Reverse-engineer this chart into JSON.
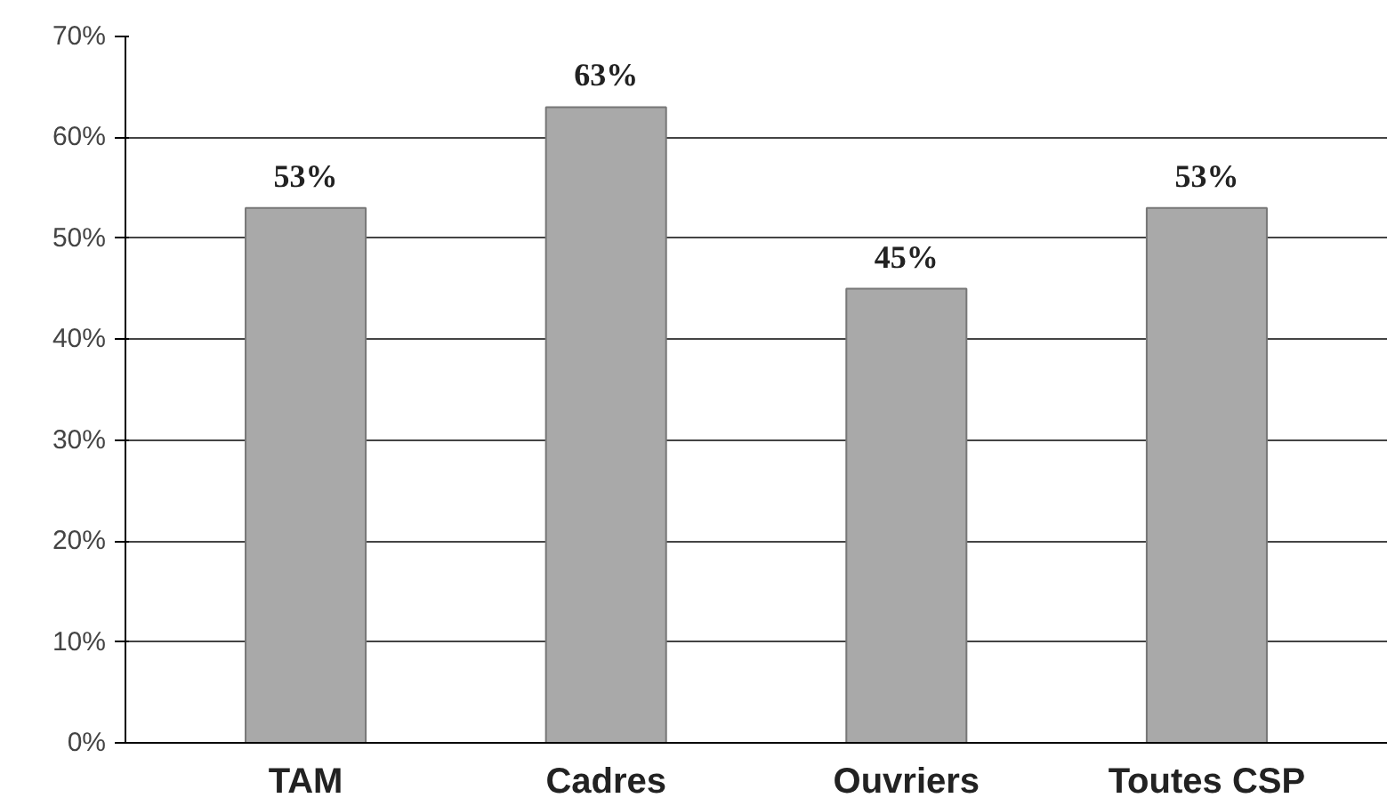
{
  "chart_data": {
    "type": "bar",
    "categories": [
      "TAM",
      "Cadres",
      "Ouvriers",
      "Toutes CSP"
    ],
    "values": [
      53,
      63,
      45,
      53
    ],
    "color": "#a9a9a9",
    "data_labels": true,
    "value_labels": [
      "53%",
      "63%",
      "45%",
      "53%"
    ],
    "ylim": [
      0,
      70
    ],
    "yticks": [
      {
        "value": 0,
        "label": "0%"
      },
      {
        "value": 10,
        "label": "10%"
      },
      {
        "value": 20,
        "label": "20%"
      },
      {
        "value": 30,
        "label": "30%"
      },
      {
        "value": 40,
        "label": "40%"
      },
      {
        "value": 50,
        "label": "50%"
      },
      {
        "value": 60,
        "label": "60%"
      },
      {
        "value": 70,
        "label": "70%"
      }
    ],
    "grid": "y"
  }
}
